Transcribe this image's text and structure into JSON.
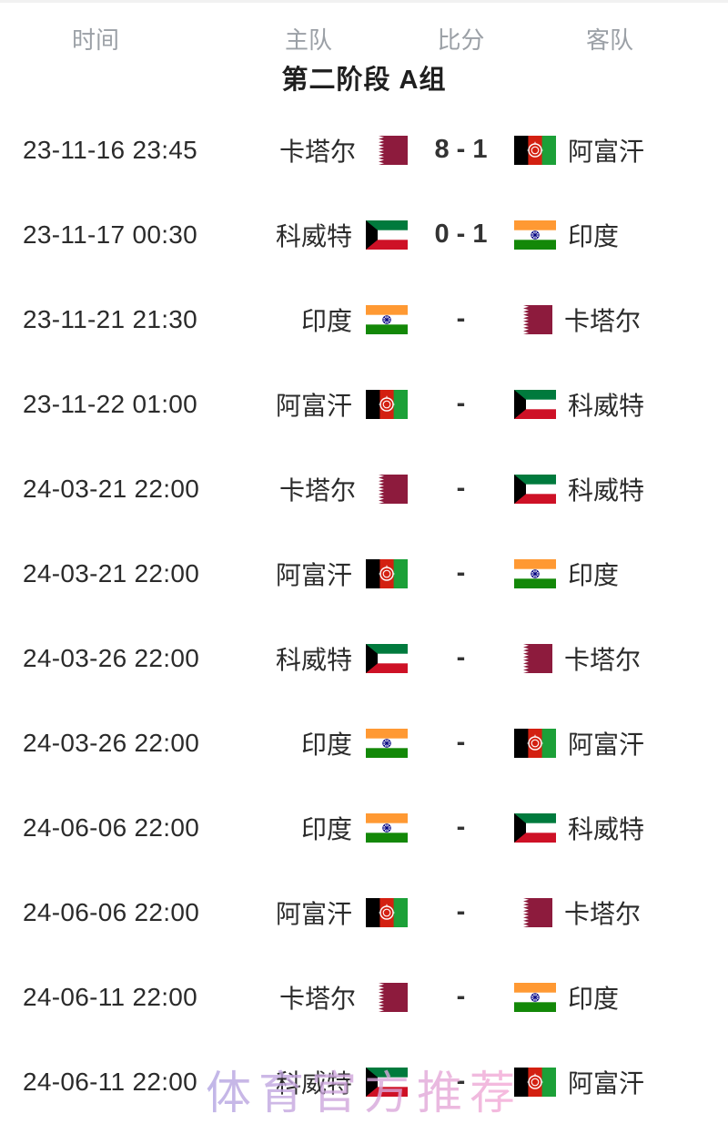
{
  "table": {
    "headers": {
      "time": "时间",
      "home": "主队",
      "score": "比分",
      "away": "客队"
    },
    "group_title": "第二阶段 A组",
    "matches": [
      {
        "time": "23-11-16 23:45",
        "home": "卡塔尔",
        "home_flag": "qatar",
        "score": "8 - 1",
        "away": "阿富汗",
        "away_flag": "afghanistan"
      },
      {
        "time": "23-11-17 00:30",
        "home": "科威特",
        "home_flag": "kuwait",
        "score": "0 - 1",
        "away": "印度",
        "away_flag": "india"
      },
      {
        "time": "23-11-21 21:30",
        "home": "印度",
        "home_flag": "india",
        "score": "-",
        "away": "卡塔尔",
        "away_flag": "qatar"
      },
      {
        "time": "23-11-22 01:00",
        "home": "阿富汗",
        "home_flag": "afghanistan",
        "score": "-",
        "away": "科威特",
        "away_flag": "kuwait"
      },
      {
        "time": "24-03-21 22:00",
        "home": "卡塔尔",
        "home_flag": "qatar",
        "score": "-",
        "away": "科威特",
        "away_flag": "kuwait"
      },
      {
        "time": "24-03-21 22:00",
        "home": "阿富汗",
        "home_flag": "afghanistan",
        "score": "-",
        "away": "印度",
        "away_flag": "india"
      },
      {
        "time": "24-03-26 22:00",
        "home": "科威特",
        "home_flag": "kuwait",
        "score": "-",
        "away": "卡塔尔",
        "away_flag": "qatar"
      },
      {
        "time": "24-03-26 22:00",
        "home": "印度",
        "home_flag": "india",
        "score": "-",
        "away": "阿富汗",
        "away_flag": "afghanistan"
      },
      {
        "time": "24-06-06 22:00",
        "home": "印度",
        "home_flag": "india",
        "score": "-",
        "away": "科威特",
        "away_flag": "kuwait"
      },
      {
        "time": "24-06-06 22:00",
        "home": "阿富汗",
        "home_flag": "afghanistan",
        "score": "-",
        "away": "卡塔尔",
        "away_flag": "qatar"
      },
      {
        "time": "24-06-11 22:00",
        "home": "卡塔尔",
        "home_flag": "qatar",
        "score": "-",
        "away": "印度",
        "away_flag": "india"
      },
      {
        "time": "24-06-11 22:00",
        "home": "科威特",
        "home_flag": "kuwait",
        "score": "-",
        "away": "阿富汗",
        "away_flag": "afghanistan"
      }
    ]
  },
  "watermark": {
    "text": "体育官方推荐",
    "color_start": "#b3a6e3",
    "color_end": "#f7a9d5"
  },
  "colors": {
    "header_text": "#9ba0a6",
    "title_text": "#1f1f1f",
    "time_text": "#2b2b2b",
    "team_text": "#2b2b2b",
    "score_text": "#333333",
    "flags": {
      "qatar": {
        "maroon": "#8d1b3d",
        "white": "#ffffff"
      },
      "afghanistan": {
        "black": "#000000",
        "red": "#d32011",
        "green": "#1ca038",
        "emblem": "#ffffff"
      },
      "kuwait": {
        "green": "#007a3d",
        "white": "#ffffff",
        "red": "#ce1126",
        "black": "#000000"
      },
      "india": {
        "saffron": "#ff9933",
        "white": "#ffffff",
        "green": "#138808",
        "navy": "#000080"
      }
    }
  }
}
